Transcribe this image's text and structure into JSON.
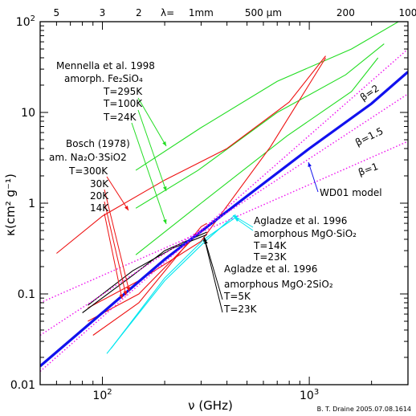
{
  "chart_data": {
    "type": "line",
    "scale": {
      "x": "log",
      "y": "log"
    },
    "xlim": [
      50,
      3000
    ],
    "ylim": [
      0.01,
      100
    ],
    "xlabel": "ν (GHz)",
    "ylabel": "κ(cm² g⁻¹)",
    "x_ticks": [
      {
        "value": 100,
        "base": "10",
        "exp": "2"
      },
      {
        "value": 1000,
        "base": "10",
        "exp": "3"
      }
    ],
    "y_ticks": [
      {
        "value": 100,
        "base": "10",
        "exp": "2"
      },
      {
        "value": 10,
        "base": "10",
        "exp": ""
      },
      {
        "value": 1,
        "base": "1",
        "exp": ""
      },
      {
        "value": 0.1,
        "base": "0.1",
        "exp": ""
      },
      {
        "value": 0.01,
        "base": "0.01",
        "exp": ""
      }
    ],
    "top_axis": {
      "label": "λ=",
      "ticks": [
        {
          "label": "5",
          "freq": 59.96
        },
        {
          "label": "3",
          "freq": 99.93
        },
        {
          "label": "2",
          "freq": 149.9
        },
        {
          "label": "1mm",
          "freq": 299.8
        },
        {
          "label": "500 μm",
          "freq": 599.6
        },
        {
          "label": "200",
          "freq": 1499
        },
        {
          "label": "100",
          "freq": 2998
        }
      ]
    },
    "credit": "B. T. Draine 2005.07.08.1614",
    "colors": {
      "green": "#22dd22",
      "red": "#ee1111",
      "cyan": "#00e6ef",
      "blue": "#1111ee",
      "magenta": "#ee11ee",
      "black": "#000000"
    },
    "series": [
      {
        "group": "Mennella et al. 1998",
        "label": "T=295K",
        "color": "#22dd22",
        "style": "thin",
        "points": [
          [
            145,
            2.3
          ],
          [
            300,
            6.8
          ],
          [
            700,
            22
          ],
          [
            1600,
            50
          ],
          [
            2800,
            105
          ]
        ]
      },
      {
        "group": "Mennella et al. 1998",
        "label": "T=100K",
        "color": "#22dd22",
        "style": "thin",
        "points": [
          [
            145,
            0.88
          ],
          [
            290,
            2.3
          ],
          [
            700,
            10
          ],
          [
            1500,
            26
          ],
          [
            2300,
            57
          ]
        ]
      },
      {
        "group": "Mennella et al. 1998",
        "label": "T=24K",
        "color": "#22dd22",
        "style": "thin",
        "points": [
          [
            145,
            0.27
          ],
          [
            300,
            1.0
          ],
          [
            780,
            5.5
          ],
          [
            1600,
            17
          ],
          [
            2150,
            40
          ]
        ]
      },
      {
        "group": "Bosch (1978)",
        "label": "T=300K",
        "color": "#ee1111",
        "style": "thin",
        "points": [
          [
            60,
            0.28
          ],
          [
            100,
            0.72
          ],
          [
            200,
            1.8
          ],
          [
            400,
            4.0
          ],
          [
            800,
            13
          ],
          [
            1200,
            42
          ]
        ]
      },
      {
        "group": "Bosch (1978)",
        "label": "30K",
        "color": "#ee1111",
        "style": "thin",
        "points": [
          [
            85,
            0.07
          ],
          [
            150,
            0.14
          ],
          [
            300,
            0.38
          ],
          [
            650,
            4.2
          ],
          [
            1200,
            40
          ]
        ]
      },
      {
        "group": "Bosch (1978)",
        "label": "20K",
        "color": "#ee1111",
        "style": "thin",
        "points": [
          [
            85,
            0.05
          ],
          [
            150,
            0.1
          ],
          [
            300,
            0.5
          ],
          [
            330,
            0.58
          ]
        ]
      },
      {
        "group": "Bosch (1978)",
        "label": "14K",
        "color": "#ee1111",
        "style": "thin",
        "points": [
          [
            90,
            0.035
          ],
          [
            150,
            0.08
          ],
          [
            300,
            0.55
          ],
          [
            320,
            0.6
          ]
        ]
      },
      {
        "group": "Agladze et al. 1996 amorphous MgO·2SiO₂",
        "label": "T=5K",
        "color": "#000000",
        "style": "thin",
        "points": [
          [
            80,
            0.062
          ],
          [
            140,
            0.16
          ],
          [
            200,
            0.3
          ],
          [
            320,
            0.48
          ]
        ]
      },
      {
        "group": "Agladze et al. 1996 amorphous MgO·2SiO₂",
        "label": "T=23K",
        "color": "#000000",
        "style": "thin",
        "points": [
          [
            85,
            0.075
          ],
          [
            140,
            0.18
          ],
          [
            220,
            0.32
          ],
          [
            320,
            0.45
          ]
        ]
      },
      {
        "group": "Agladze et al. 1996 amorphous MgO·SiO₂",
        "label": "T=14K",
        "color": "#00e6ef",
        "style": "thin",
        "points": [
          [
            105,
            0.022
          ],
          [
            200,
            0.14
          ],
          [
            310,
            0.37
          ],
          [
            440,
            0.75
          ]
        ]
      },
      {
        "group": "Agladze et al. 1996 amorphous MgO·SiO₂",
        "label": "T=23K",
        "color": "#00e6ef",
        "style": "thin",
        "points": [
          [
            110,
            0.025
          ],
          [
            200,
            0.15
          ],
          [
            310,
            0.4
          ],
          [
            450,
            0.72
          ]
        ]
      },
      {
        "group": "WD01 model",
        "label": "WD01 model",
        "color": "#1111ee",
        "style": "thick",
        "points": [
          [
            50,
            0.016
          ],
          [
            100,
            0.062
          ],
          [
            200,
            0.24
          ],
          [
            500,
            1.2
          ],
          [
            1000,
            4.0
          ],
          [
            2000,
            12.5
          ],
          [
            3000,
            28
          ]
        ]
      },
      {
        "group": "β",
        "label": "β=2",
        "color": "#ee11ee",
        "style": "dotted",
        "points": [
          [
            50,
            0.014
          ],
          [
            3000,
            50
          ]
        ]
      },
      {
        "group": "β",
        "label": "β=1.5",
        "color": "#ee11ee",
        "style": "dotted",
        "points": [
          [
            50,
            0.035
          ],
          [
            3000,
            16
          ]
        ]
      },
      {
        "group": "β",
        "label": "β=1",
        "color": "#ee11ee",
        "style": "dotted",
        "points": [
          [
            50,
            0.08
          ],
          [
            3000,
            4.8
          ]
        ]
      }
    ],
    "annotations": [
      {
        "id": "mennella-title",
        "text": "Mennella et al. 1998",
        "color": "#22dd22"
      },
      {
        "id": "mennella-material",
        "text": "amorph. Fe₂SiO₄",
        "color": "#22dd22"
      },
      {
        "id": "mennella-t295",
        "text": "T=295K",
        "color": "#22dd22"
      },
      {
        "id": "mennella-t100",
        "text": "T=100K",
        "color": "#22dd22"
      },
      {
        "id": "mennella-t24",
        "text": "T=24K",
        "color": "#22dd22"
      },
      {
        "id": "bosch-title",
        "text": "Bosch (1978)",
        "color": "#ee1111"
      },
      {
        "id": "bosch-material",
        "text": "am. Na₂O·3SiO2",
        "color": "#ee1111"
      },
      {
        "id": "bosch-t300",
        "text": "T=300K",
        "color": "#ee1111"
      },
      {
        "id": "bosch-t30",
        "text": "30K",
        "color": "#ee1111"
      },
      {
        "id": "bosch-t20",
        "text": "20K",
        "color": "#ee1111"
      },
      {
        "id": "bosch-t14",
        "text": "14K",
        "color": "#ee1111"
      },
      {
        "id": "agladze-cyan-title",
        "text": "Agladze et al. 1996",
        "color": "#00d0d8"
      },
      {
        "id": "agladze-cyan-material",
        "text": "amorphous MgO·SiO₂",
        "color": "#00d0d8"
      },
      {
        "id": "agladze-cyan-t14",
        "text": "T=14K",
        "color": "#00d0d8"
      },
      {
        "id": "agladze-cyan-t23",
        "text": "T=23K",
        "color": "#00d0d8"
      },
      {
        "id": "agladze-black-title",
        "text": "Agladze et al. 1996",
        "color": "#000000"
      },
      {
        "id": "agladze-black-material",
        "text": "amorphous MgO·2SiO₂",
        "color": "#000000"
      },
      {
        "id": "agladze-black-t5",
        "text": "T=5K",
        "color": "#000000"
      },
      {
        "id": "agladze-black-t23",
        "text": "T=23K",
        "color": "#000000"
      },
      {
        "id": "wd01-label",
        "text": "WD01 model",
        "color": "#1111ee"
      },
      {
        "id": "beta-2",
        "text": "β=2",
        "color": "#ee11ee"
      },
      {
        "id": "beta-1-5",
        "text": "β=1.5",
        "color": "#ee11ee"
      },
      {
        "id": "beta-1",
        "text": "β=1",
        "color": "#ee11ee"
      }
    ]
  }
}
